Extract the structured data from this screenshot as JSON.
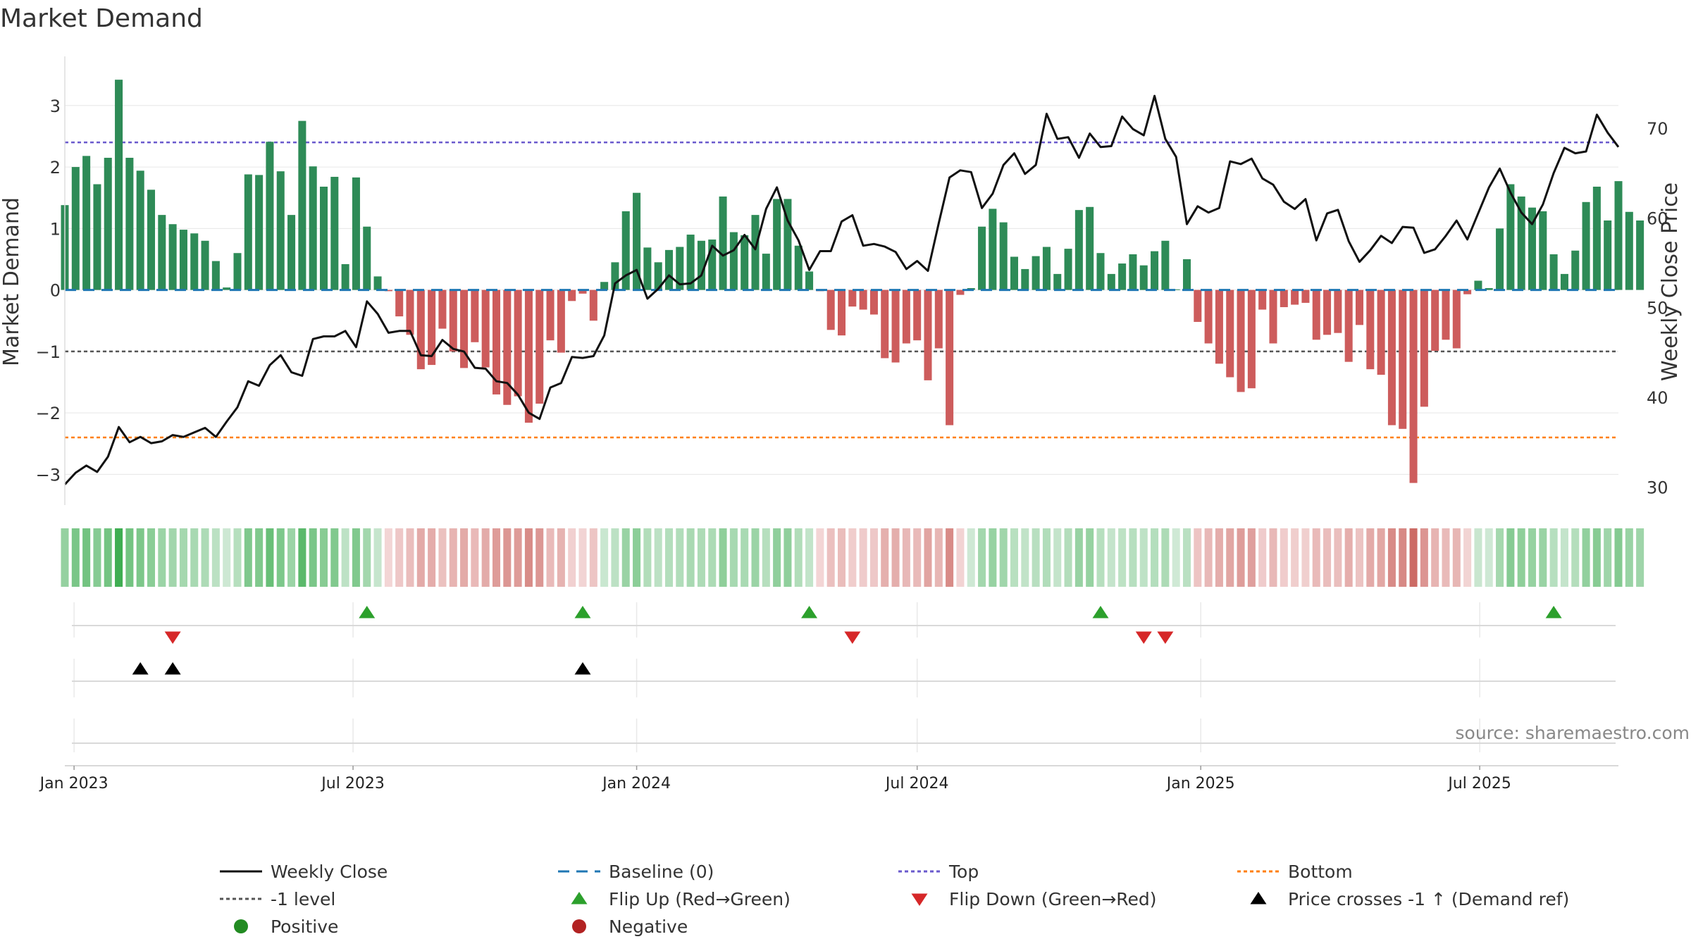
{
  "chart_data": {
    "type": "bar+line",
    "title": "Market Demand",
    "ylabel_left": "Market Demand",
    "ylabel_right": "Weekly Close Price",
    "ylim_left": [
      -3.5,
      3.8
    ],
    "ylim_right": [
      28,
      78
    ],
    "yticks_left": [
      -3,
      -2,
      -1,
      0,
      1,
      2,
      3
    ],
    "yticks_left_labels": [
      "−3",
      "−2",
      "−1",
      "0",
      "1",
      "2",
      "3"
    ],
    "yticks_right": [
      30,
      40,
      50,
      60,
      70
    ],
    "yticks_right_labels": [
      "30",
      "40",
      "50",
      "60",
      "70"
    ],
    "start_date": "2022-12-26",
    "week_days": 7,
    "x_domain": [
      "2022-12-26",
      "2025-09-29"
    ],
    "x_ticks": [
      {
        "date": "2023-01-01",
        "label": "Jan 2023"
      },
      {
        "date": "2023-07-01",
        "label": "Jul 2023"
      },
      {
        "date": "2024-01-01",
        "label": "Jan 2024"
      },
      {
        "date": "2024-07-01",
        "label": "Jul 2024"
      },
      {
        "date": "2025-01-01",
        "label": "Jan 2025"
      },
      {
        "date": "2025-07-01",
        "label": "Jul 2025"
      }
    ],
    "demand": [
      1.38,
      2.0,
      2.18,
      1.72,
      2.15,
      3.42,
      2.15,
      1.94,
      1.63,
      1.22,
      1.07,
      0.98,
      0.92,
      0.8,
      0.47,
      0.04,
      0.6,
      1.88,
      1.87,
      2.41,
      1.93,
      1.22,
      2.75,
      2.01,
      1.68,
      1.84,
      0.42,
      1.83,
      1.03,
      0.22,
      -0.02,
      -0.43,
      -0.73,
      -1.29,
      -1.22,
      -0.63,
      -1.0,
      -1.27,
      -0.85,
      -1.26,
      -1.7,
      -1.87,
      -1.73,
      -2.16,
      -1.85,
      -0.82,
      -1.02,
      -0.18,
      -0.06,
      -0.5,
      0.13,
      0.45,
      1.28,
      1.58,
      0.69,
      0.45,
      0.65,
      0.7,
      0.9,
      0.8,
      0.82,
      1.52,
      0.94,
      0.89,
      1.22,
      0.59,
      1.48,
      1.48,
      0.72,
      0.3,
      -0.02,
      -0.65,
      -0.74,
      -0.27,
      -0.32,
      -0.4,
      -1.11,
      -1.18,
      -0.87,
      -0.82,
      -1.47,
      -0.95,
      -2.2,
      -0.08,
      0.03,
      1.03,
      1.32,
      1.1,
      0.54,
      0.34,
      0.55,
      0.7,
      0.26,
      0.67,
      1.3,
      1.35,
      0.6,
      0.26,
      0.43,
      0.58,
      0.4,
      0.63,
      0.8,
      0.01,
      0.5,
      -0.52,
      -0.87,
      -1.2,
      -1.42,
      -1.66,
      -1.6,
      -0.32,
      -0.87,
      -0.28,
      -0.24,
      -0.21,
      -0.81,
      -0.73,
      -0.7,
      -1.17,
      -0.57,
      -1.29,
      -1.38,
      -2.2,
      -2.26,
      -3.14,
      -1.9,
      -0.99,
      -0.81,
      -0.95,
      -0.07,
      0.15,
      0.03,
      1.0,
      1.72,
      1.52,
      1.34,
      1.28,
      0.58,
      0.26,
      0.64,
      1.43,
      1.68,
      1.13,
      1.77,
      1.27,
      1.13
    ],
    "close": [
      30.3,
      31.6,
      32.4,
      31.7,
      33.4,
      36.7,
      35.0,
      35.6,
      34.9,
      35.1,
      35.8,
      35.6,
      36.1,
      36.6,
      35.6,
      37.3,
      38.9,
      41.8,
      41.3,
      43.6,
      44.7,
      42.8,
      42.4,
      46.5,
      46.8,
      46.8,
      47.4,
      45.6,
      50.7,
      49.3,
      47.2,
      47.4,
      47.4,
      44.7,
      44.6,
      46.4,
      45.4,
      45.1,
      43.3,
      43.2,
      41.8,
      41.6,
      40.3,
      38.3,
      37.6,
      41.1,
      41.6,
      44.5,
      44.4,
      44.6,
      46.9,
      52.7,
      53.6,
      54.2,
      51.0,
      52.1,
      53.6,
      52.6,
      52.7,
      53.6,
      56.9,
      55.8,
      56.4,
      58.1,
      56.5,
      61.0,
      63.4,
      59.7,
      57.5,
      54.2,
      56.3,
      56.3,
      59.6,
      60.3,
      56.9,
      57.1,
      56.8,
      56.2,
      54.3,
      55.2,
      54.1,
      59.4,
      64.5,
      65.3,
      65.1,
      61.1,
      62.7,
      65.9,
      67.2,
      64.9,
      65.9,
      71.6,
      68.8,
      69.0,
      66.7,
      69.4,
      67.9,
      68.0,
      71.3,
      69.9,
      69.2,
      73.6,
      68.8,
      66.8,
      59.3,
      61.3,
      60.6,
      61.1,
      66.3,
      66.0,
      66.6,
      64.4,
      63.7,
      61.8,
      61.0,
      62.1,
      57.5,
      60.5,
      60.9,
      57.4,
      55.1,
      56.4,
      58.0,
      57.2,
      59.0,
      58.9,
      56.1,
      56.5,
      58.0,
      59.7,
      57.6,
      60.5,
      63.4,
      65.5,
      62.8,
      60.6,
      59.3,
      61.5,
      65.0,
      67.8,
      67.2,
      67.4,
      71.5,
      69.5,
      67.9
    ],
    "top_level": 2.4,
    "bottom_level": -2.4,
    "minus_one_level": -1,
    "flips_up_weeks": [
      28,
      48,
      69,
      96,
      138
    ],
    "flips_down_weeks": [
      10,
      73,
      100,
      102
    ],
    "price_cross_weeks": [
      7,
      10,
      48
    ],
    "colors": {
      "positive_bar": "#2e8b57",
      "negative_bar": "#cd5c5c",
      "price_line": "#111111",
      "baseline": "#1f77b4",
      "top": "#6a5acd",
      "bottom": "#ff7f0e",
      "minus_one": "#555555",
      "flip_up": "#2ca02c",
      "flip_down": "#d62728",
      "price_cross": "#000000",
      "positive_dot": "#228b22",
      "negative_dot": "#b22222",
      "heat_pos_light": "#cfe9d5",
      "heat_pos_dark": "#3fae52",
      "heat_neg_light": "#f3d6d6",
      "heat_neg_dark": "#c9625c"
    },
    "legend": [
      {
        "key": "weekly-close",
        "label": "Weekly Close",
        "symbol": "line-solid",
        "color": "#111111"
      },
      {
        "key": "baseline",
        "label": "Baseline (0)",
        "symbol": "line-dash",
        "color": "#1f77b4"
      },
      {
        "key": "top",
        "label": "Top",
        "symbol": "line-dot",
        "color": "#6a5acd"
      },
      {
        "key": "bottom",
        "label": "Bottom",
        "symbol": "line-dot",
        "color": "#ff7f0e"
      },
      {
        "key": "minus-one",
        "label": "-1 level",
        "symbol": "line-dot",
        "color": "#555555"
      },
      {
        "key": "flip-up",
        "label": "Flip Up (Red→Green)",
        "symbol": "triangle-up",
        "color": "#2ca02c"
      },
      {
        "key": "flip-down",
        "label": "Flip Down (Green→Red)",
        "symbol": "triangle-down",
        "color": "#d62728"
      },
      {
        "key": "price-cross",
        "label": "Price crosses -1 ↑ (Demand ref)",
        "symbol": "triangle-up",
        "color": "#000000"
      },
      {
        "key": "positive",
        "label": "Positive",
        "symbol": "circle",
        "color": "#228b22"
      },
      {
        "key": "negative",
        "label": "Negative",
        "symbol": "circle",
        "color": "#b22222"
      }
    ],
    "source_text": "source: sharemaestro.com"
  }
}
